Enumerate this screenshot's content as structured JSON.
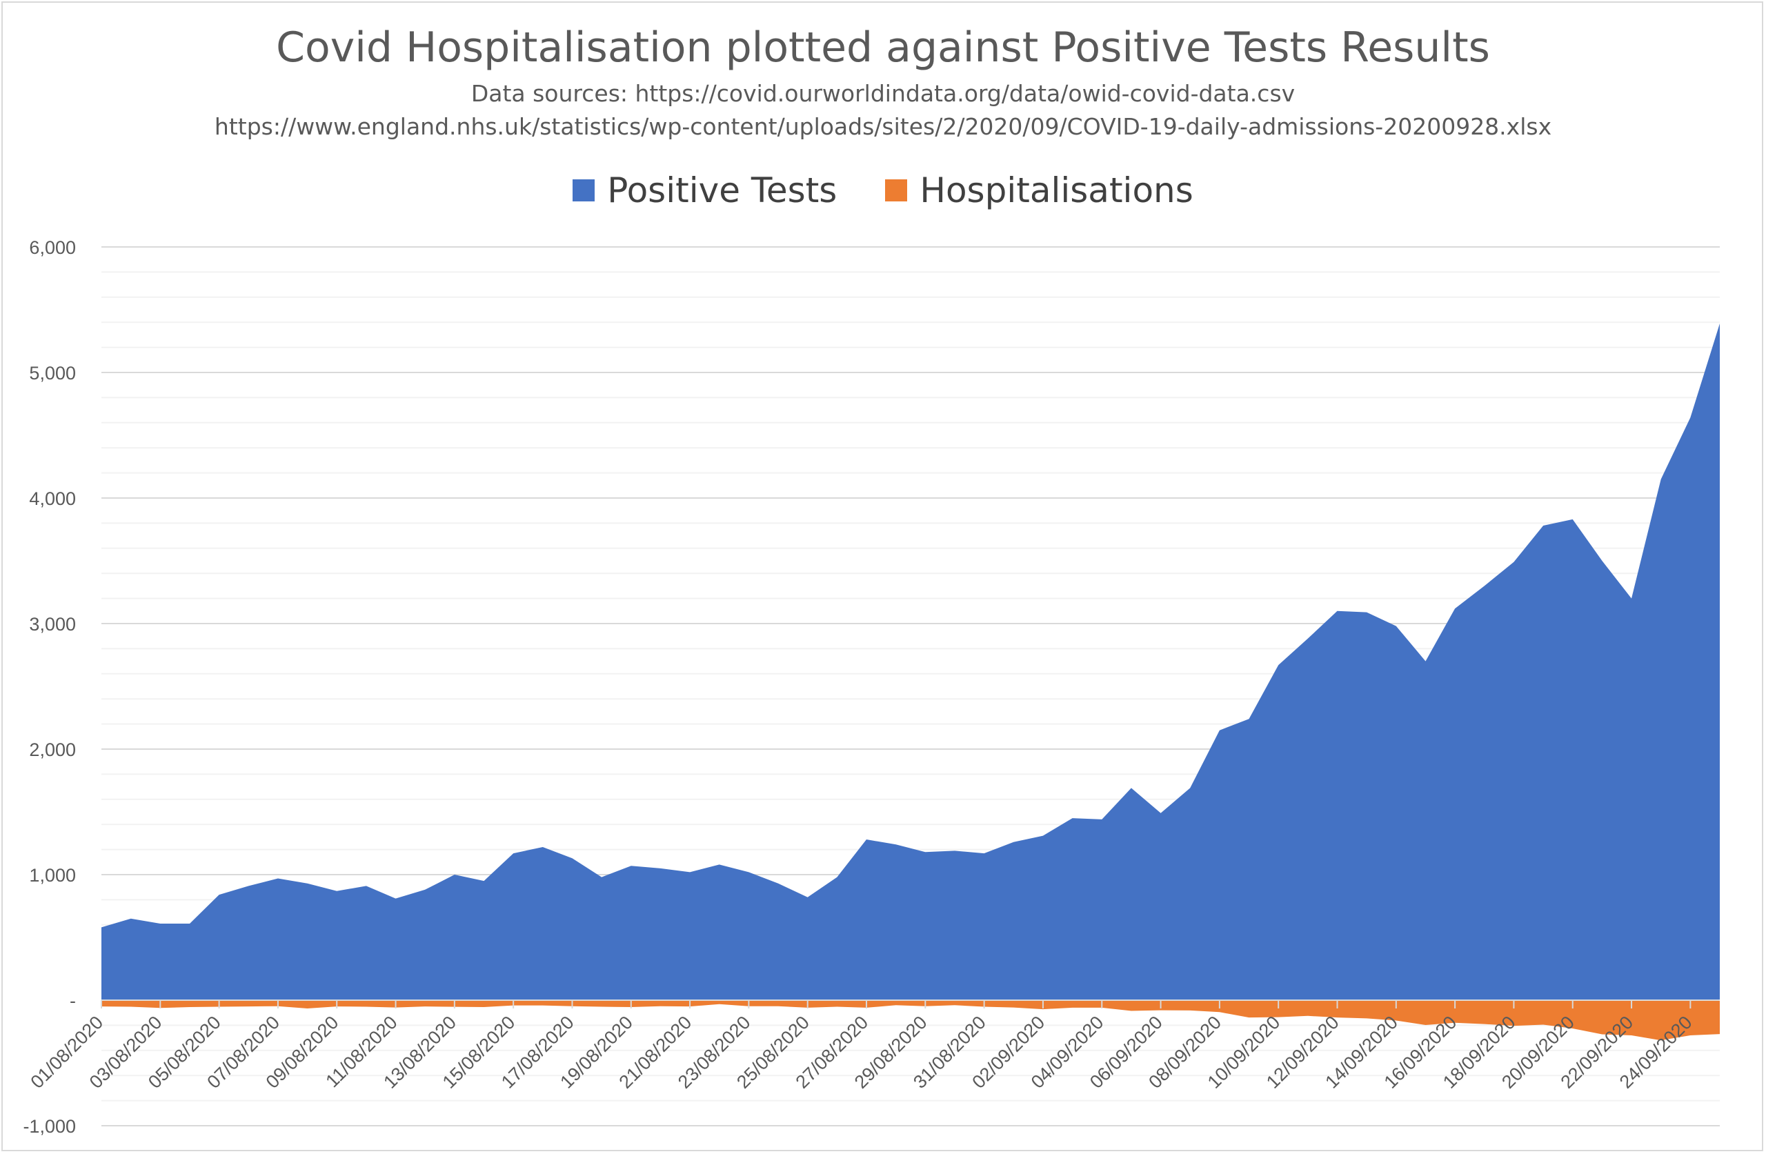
{
  "chart_data": {
    "type": "area",
    "title": "Covid Hospitalisation plotted against Positive Tests Results",
    "subtitle_lines": [
      "Data sources: https://covid.ourworldindata.org/data/owid-covid-data.csv",
      "https://www.england.nhs.uk/statistics/wp-content/uploads/sites/2/2020/09/COVID-19-daily-admissions-20200928.xlsx"
    ],
    "legend_position": "top",
    "grid": true,
    "ylim": [
      -1000,
      6000
    ],
    "y_ticks": [
      {
        "value": 6000,
        "label": "6,000"
      },
      {
        "value": 5000,
        "label": "5,000"
      },
      {
        "value": 4000,
        "label": "4,000"
      },
      {
        "value": 3000,
        "label": "3,000"
      },
      {
        "value": 2000,
        "label": "2,000"
      },
      {
        "value": 1000,
        "label": "1,000"
      },
      {
        "value": 0,
        "label": "-"
      },
      {
        "value": -1000,
        "label": "-1,000"
      }
    ],
    "x": [
      "01/08/2020",
      "02/08/2020",
      "03/08/2020",
      "04/08/2020",
      "05/08/2020",
      "06/08/2020",
      "07/08/2020",
      "08/08/2020",
      "09/08/2020",
      "10/08/2020",
      "11/08/2020",
      "12/08/2020",
      "13/08/2020",
      "14/08/2020",
      "15/08/2020",
      "16/08/2020",
      "17/08/2020",
      "18/08/2020",
      "19/08/2020",
      "20/08/2020",
      "21/08/2020",
      "22/08/2020",
      "23/08/2020",
      "24/08/2020",
      "25/08/2020",
      "26/08/2020",
      "27/08/2020",
      "28/08/2020",
      "29/08/2020",
      "30/08/2020",
      "31/08/2020",
      "01/09/2020",
      "02/09/2020",
      "03/09/2020",
      "04/09/2020",
      "05/09/2020",
      "06/09/2020",
      "07/09/2020",
      "08/09/2020",
      "09/09/2020",
      "10/09/2020",
      "11/09/2020",
      "12/09/2020",
      "13/09/2020",
      "14/09/2020",
      "15/09/2020",
      "16/09/2020",
      "17/09/2020",
      "18/09/2020",
      "19/09/2020",
      "20/09/2020",
      "21/09/2020",
      "22/09/2020",
      "23/09/2020",
      "24/09/2020",
      "25/09/2020"
    ],
    "x_tick_labels": [
      "01/08/2020",
      "03/08/2020",
      "05/08/2020",
      "07/08/2020",
      "09/08/2020",
      "11/08/2020",
      "13/08/2020",
      "15/08/2020",
      "17/08/2020",
      "19/08/2020",
      "21/08/2020",
      "23/08/2020",
      "25/08/2020",
      "27/08/2020",
      "29/08/2020",
      "31/08/2020",
      "02/09/2020",
      "04/09/2020",
      "06/09/2020",
      "08/09/2020",
      "10/09/2020",
      "12/09/2020",
      "14/09/2020",
      "16/09/2020",
      "18/09/2020",
      "20/09/2020",
      "22/09/2020",
      "24/09/2020"
    ],
    "series": [
      {
        "name": "Positive Tests",
        "color": "#4472c4",
        "values": [
          580,
          650,
          610,
          610,
          840,
          910,
          970,
          930,
          870,
          910,
          810,
          880,
          1000,
          950,
          1170,
          1220,
          1130,
          980,
          1070,
          1050,
          1020,
          1080,
          1020,
          930,
          820,
          980,
          1280,
          1240,
          1180,
          1190,
          1170,
          1260,
          1310,
          1450,
          1440,
          1690,
          1490,
          1690,
          2150,
          2240,
          2670,
          2880,
          3100,
          3090,
          2980,
          2700,
          3120,
          3300,
          3490,
          3780,
          3830,
          3500,
          3200,
          4150,
          4640,
          5390
        ]
      },
      {
        "name": "Hospitalisations",
        "color": "#ed7d31",
        "values": [
          -50,
          -52,
          -62,
          -55,
          -52,
          -50,
          -48,
          -66,
          -50,
          -52,
          -58,
          -50,
          -53,
          -55,
          -42,
          -42,
          -48,
          -52,
          -55,
          -48,
          -50,
          -32,
          -48,
          -48,
          -60,
          -52,
          -60,
          -40,
          -48,
          -40,
          -52,
          -58,
          -72,
          -60,
          -60,
          -85,
          -80,
          -82,
          -95,
          -138,
          -135,
          -125,
          -138,
          -145,
          -162,
          -198,
          -180,
          -190,
          -205,
          -195,
          -225,
          -272,
          -280,
          -320,
          -280,
          -270
        ]
      }
    ]
  }
}
